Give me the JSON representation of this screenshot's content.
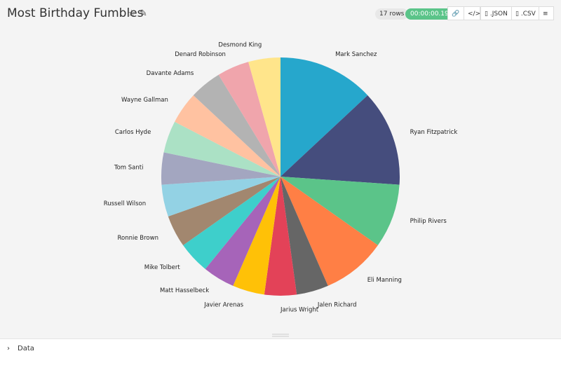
{
  "header": {
    "title": "Most Birthday Fumbles",
    "rows": "17 rows",
    "runtime": "00:00:00.19",
    "buttons": [
      ".JSON",
      ".CSV"
    ]
  },
  "chart_data": {
    "type": "pie",
    "categories": [
      "Mark Sanchez",
      "Ryan Fitzpatrick",
      "Philip Rivers",
      "Eli Manning",
      "Jalen Richard",
      "Jarius Wright",
      "Javier Arenas",
      "Matt Hasselbeck",
      "Mike Tolbert",
      "Ronnie Brown",
      "Russell Wilson",
      "Tom Santi",
      "Carlos Hyde",
      "Wayne Gallman",
      "Davante Adams",
      "Denard Robinson",
      "Desmond King"
    ],
    "values": [
      3,
      3,
      2,
      2,
      1,
      1,
      1,
      1,
      1,
      1,
      1,
      1,
      1,
      1,
      1,
      1,
      1
    ],
    "colors": [
      "#26a7cc",
      "#454d7d",
      "#5bc489",
      "#ff7f45",
      "#666666",
      "#e34258",
      "#ffc107",
      "#a664b9",
      "#3ecfcb",
      "#a2876f",
      "#93d2e4",
      "#a3a6c0",
      "#abe1c5",
      "#ffc2a1",
      "#b3b3b3",
      "#f0a5ac",
      "#ffe58b"
    ]
  },
  "footer": {
    "section": "Data"
  }
}
